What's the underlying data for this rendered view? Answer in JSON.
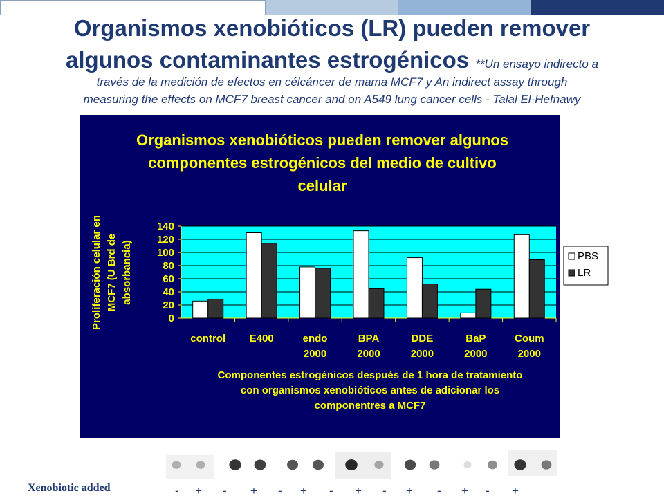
{
  "slide": {
    "title_line1": "Organismos xenobióticos (LR) pueden remover",
    "title_line2": "algunos contaminantes estrogénicos",
    "title_note": "**Un ensayo indirecto a",
    "subtitle_line1": "través de la medición de efectos en célcáncer de mama MCF7 y An indirect assay through",
    "subtitle_line2": "measuring the effects on MCF7 breast cancer and on A549 lung cancer cells  - Talal El-Hefnawy",
    "bar_colors": [
      "#ffffff",
      "#b7cbe0",
      "#93b4d6",
      "#1f3a73"
    ]
  },
  "chart_data": {
    "type": "bar",
    "title_lines": [
      "Organismos xenobióticos pueden remover algunos",
      "componentes estrogénicos del medio de cultivo",
      "celular"
    ],
    "categories": [
      [
        "control",
        ""
      ],
      [
        "E400",
        ""
      ],
      [
        "endo",
        "2000"
      ],
      [
        "BPA",
        "2000"
      ],
      [
        "DDE",
        "2000"
      ],
      [
        "BaP",
        "2000"
      ],
      [
        "Coum",
        "2000"
      ]
    ],
    "series": [
      {
        "name": "PBS",
        "color": "#ffffff",
        "values": [
          26,
          130,
          78,
          133,
          92,
          8,
          127
        ]
      },
      {
        "name": "LR",
        "color": "#333333",
        "values": [
          29,
          114,
          76,
          45,
          52,
          44,
          89
        ]
      }
    ],
    "ylim": [
      0,
      140
    ],
    "yticks": [
      "0",
      "20",
      "40",
      "60",
      "80",
      "100",
      "120",
      "140"
    ],
    "ylabel_lines": [
      "Proliferación celular en",
      "MCF7  (U Brd de",
      "absorbancia)"
    ],
    "xlabel_lines": [
      "Componentes estrogénicos después de 1 hora de tratamiento",
      "con organismos xenobióticos antes de adicionar los",
      "componentres  a MCF7"
    ],
    "plot_background": "#00ffff",
    "chart_background": "#000066",
    "text_color": "#ffff00",
    "legend_position": "right"
  },
  "assay": {
    "label": "Xenobiotic added",
    "signs": [
      "-",
      "+",
      "-",
      "+",
      "-",
      "+",
      "-",
      "+",
      "-",
      "+",
      "-",
      "+",
      "-",
      "+"
    ],
    "spot_intensity": [
      0.35,
      0.35,
      0.9,
      0.85,
      0.75,
      0.75,
      0.95,
      0.4,
      0.8,
      0.6,
      0.15,
      0.5,
      0.9,
      0.6
    ]
  }
}
